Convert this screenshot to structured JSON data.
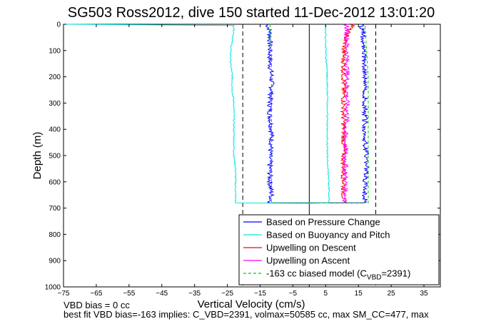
{
  "chart_data": {
    "type": "line",
    "title": "SG503 Ross2012, dive 150 started 11-Dec-2012 13:01:20",
    "xlabel": "Vertical Velocity (cm/s)",
    "ylabel": "Depth (m)",
    "xlim": [
      -75,
      40
    ],
    "ylim": [
      0,
      1000
    ],
    "y_reversed": true,
    "grid": false,
    "legend_position": "bottom-right",
    "x_ticks": [
      -75,
      -65,
      -55,
      -45,
      -35,
      -25,
      -15,
      -5,
      5,
      15,
      25,
      35
    ],
    "y_ticks": [
      0,
      100,
      200,
      300,
      400,
      500,
      600,
      700,
      800,
      900,
      1000
    ],
    "reference_lines": [
      {
        "x": -20.3,
        "style": "dashed",
        "color": "#000000"
      },
      {
        "x": 0,
        "style": "solid",
        "color": "#000000"
      },
      {
        "x": 20.3,
        "style": "dashed",
        "color": "#000000"
      }
    ],
    "series": [
      {
        "name": "Based on Pressure Change",
        "color": "#0000ff",
        "style": "solid",
        "depth": [
          0,
          10,
          30,
          60,
          100,
          150,
          200,
          250,
          300,
          350,
          400,
          450,
          500,
          550,
          600,
          650,
          680,
          680,
          650,
          600,
          550,
          500,
          450,
          400,
          350,
          300,
          250,
          200,
          150,
          100,
          60,
          30,
          10,
          0
        ],
        "values": [
          -13,
          -12.5,
          -12,
          -12,
          -12,
          -12,
          -11.5,
          -11.5,
          -12,
          -12,
          -11.5,
          -11.5,
          -12,
          -12,
          -12,
          -11.5,
          -12,
          17,
          17,
          17,
          17.5,
          17.5,
          17,
          17,
          17,
          17,
          17,
          17,
          17,
          16.5,
          16.5,
          16.5,
          16,
          16
        ]
      },
      {
        "name": "Based on Buoyancy and Pitch",
        "color": "#00e5e5",
        "style": "solid",
        "depth": [
          0,
          5,
          30,
          60,
          100,
          150,
          200,
          250,
          300,
          350,
          400,
          450,
          500,
          550,
          600,
          650,
          680,
          682,
          680,
          650,
          600,
          500,
          400,
          300,
          200,
          100,
          30,
          0
        ],
        "values": [
          -75,
          -23,
          -23,
          -23.5,
          -24,
          -24,
          -23.5,
          -23.5,
          -23,
          -23,
          -23,
          -23,
          -23,
          -22.5,
          -22.5,
          -22.5,
          -22.5,
          0,
          6,
          6,
          6,
          5.5,
          5.5,
          5.5,
          5.5,
          5,
          5,
          5
        ]
      },
      {
        "name": "Upwelling on Descent",
        "color": "#ff0000",
        "style": "solid",
        "depth": [
          0,
          20,
          60,
          100,
          150,
          200,
          250,
          300,
          350,
          400,
          450,
          500,
          550,
          600,
          650,
          680
        ],
        "values": [
          14,
          12,
          11,
          10.5,
          10.5,
          10.5,
          10.5,
          10.5,
          10.5,
          10.5,
          10.5,
          10.5,
          10.5,
          10.5,
          10.5,
          10.5
        ]
      },
      {
        "name": "Upwelling on Ascent",
        "color": "#ff00ff",
        "style": "solid",
        "depth": [
          0,
          50,
          100,
          150,
          200,
          250,
          300,
          350,
          400,
          450,
          500,
          550,
          600,
          650,
          680
        ],
        "values": [
          11.5,
          11.5,
          11.5,
          11.5,
          11.5,
          11.5,
          11.5,
          11.5,
          11,
          11,
          11,
          11,
          11,
          11,
          11
        ]
      },
      {
        "name": "-163 cc biased model (C_VBD=2391)",
        "color": "#00cc00",
        "style": "dashed",
        "depth": [
          0,
          100,
          200,
          300,
          400,
          500,
          600,
          680,
          680,
          600,
          500,
          400,
          300,
          200,
          100,
          0
        ],
        "values": [
          -12,
          -11.5,
          -11.5,
          -11.5,
          -11.5,
          -11.5,
          -11.5,
          -11.5,
          18,
          18,
          18,
          18,
          18,
          18,
          17.5,
          17
        ]
      }
    ],
    "legend": [
      {
        "label": "Based on Pressure Change",
        "color": "#0000ff",
        "style": "solid"
      },
      {
        "label": "Based on Buoyancy and Pitch",
        "color": "#00e5e5",
        "style": "solid"
      },
      {
        "label": "Upwelling on Descent",
        "color": "#ff0000",
        "style": "solid"
      },
      {
        "label": "Upwelling on Ascent",
        "color": "#ff00ff",
        "style": "solid"
      },
      {
        "label_main": "-163 cc biased model (C",
        "label_sub": "VBD",
        "label_tail": "=2391)",
        "color": "#00cc00",
        "style": "dashed"
      }
    ],
    "annotations": [
      "VBD bias = 0 cc",
      "best fit VBD bias=-163 implies: C_VBD=2391, volmax=50585 cc, max SM_CC=477, max"
    ]
  }
}
